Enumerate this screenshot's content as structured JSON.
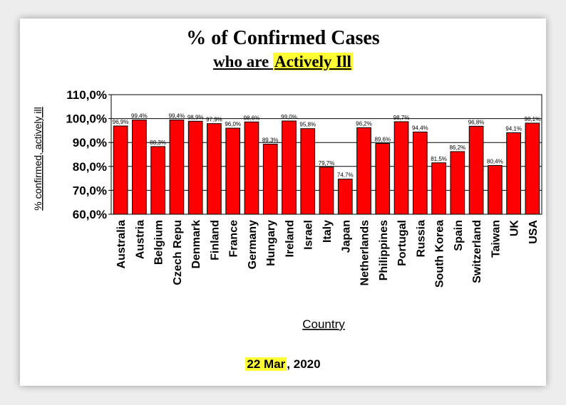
{
  "header": {
    "title": "% of Confirmed Cases",
    "subtitle_pre": "who are ",
    "subtitle_highlight": "Actively Ill"
  },
  "footer": {
    "date_highlight": "22 Mar",
    "date_rest": ", 2020"
  },
  "colors": {
    "bar": "#ff0000",
    "highlight": "#ffff33"
  },
  "chart_data": {
    "type": "bar",
    "title": "% of Confirmed Cases who are Actively Ill",
    "xlabel": "Country",
    "ylabel": "% confirmed, actively ill",
    "ylim": [
      60,
      110
    ],
    "yticks": [
      60,
      70,
      80,
      90,
      100,
      110
    ],
    "ytick_labels": [
      "60,0%",
      "70,0%",
      "80,0%",
      "90,0%",
      "100,0%",
      "110,0%"
    ],
    "grid": true,
    "categories": [
      "Australia",
      "Austria",
      "Belgium",
      "Czech Repu",
      "Denmark",
      "Finland",
      "France",
      "Germany",
      "Hungary",
      "Ireland",
      "Israel",
      "Italy",
      "Japan",
      "Netherlands",
      "Philippines",
      "Portugal",
      "Russia",
      "South Korea",
      "Spain",
      "Switzerland",
      "Taiwan",
      "UK",
      "USA"
    ],
    "values": [
      96.9,
      99.4,
      88.3,
      99.4,
      98.9,
      97.9,
      96.0,
      98.6,
      89.3,
      99.0,
      95.8,
      79.7,
      74.7,
      96.2,
      89.6,
      98.7,
      94.4,
      81.5,
      86.2,
      96.8,
      80.4,
      94.1,
      98.1
    ],
    "data_labels": [
      "96,9%",
      "99,4%",
      "88,3%",
      "99,4%",
      "98,9%",
      "97,9%",
      "96,0%",
      "98,6%",
      "89,3%",
      "99,0%",
      "95,8%",
      "79,7%",
      "74,7%",
      "96,2%",
      "89,6%",
      "98,7%",
      "94,4%",
      "81,5%",
      "86,2%",
      "96,8%",
      "80,4%",
      "94,1%",
      "98,1%"
    ]
  }
}
